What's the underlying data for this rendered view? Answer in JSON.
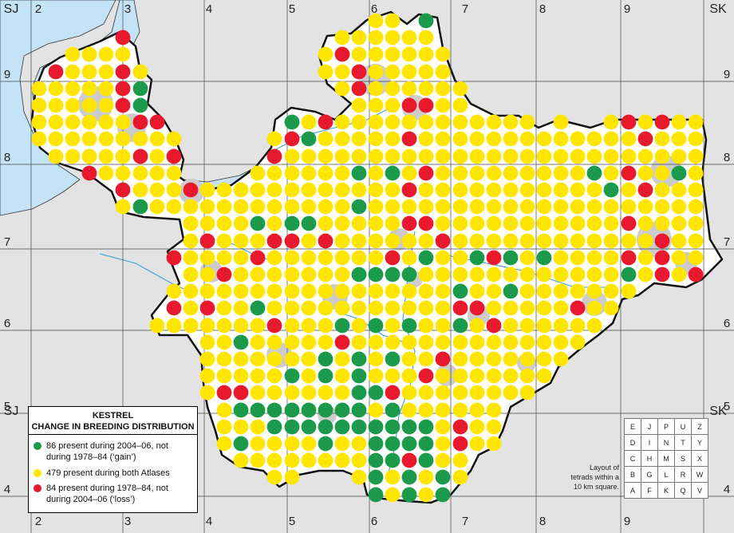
{
  "map": {
    "corner_labels": {
      "top_left": "SJ",
      "top_right": "SK",
      "bottom_left": "SJ",
      "bottom_right": "SK"
    },
    "easting_labels": [
      "2",
      "3",
      "4",
      "5",
      "6",
      "7",
      "8",
      "9"
    ],
    "northing_labels": [
      "9",
      "8",
      "7",
      "6",
      "5",
      "4"
    ],
    "colors": {
      "background_land": "#e3e3e3",
      "county_land": "#ffffff",
      "sea": "#c5e3f7",
      "urban": "#cccccc",
      "river": "#3aa0d6",
      "boundary": "#111111",
      "grid": "#444444",
      "gain": "#1a9a4a",
      "both": "#ffe600",
      "loss": "#e8192c"
    }
  },
  "legend": {
    "title_line1": "KESTREL",
    "title_line2": "CHANGE IN BREEDING DISTRIBUTION",
    "items": [
      {
        "key": "gain",
        "color": "#1a9a4a",
        "line1": "86 present during 2004–06, not",
        "line2": "during 1978–84 (‘gain’)"
      },
      {
        "key": "both",
        "color": "#ffe600",
        "line1": "479 present during both Atlases",
        "line2": ""
      },
      {
        "key": "loss",
        "color": "#e8192c",
        "line1": "84 present during 1978–84, not",
        "line2": "during 2004–06 (‘loss’)"
      }
    ]
  },
  "tetrad_key": {
    "rows": [
      [
        "E",
        "J",
        "P",
        "U",
        "Z"
      ],
      [
        "D",
        "I",
        "N",
        "T",
        "Y"
      ],
      [
        "C",
        "H",
        "M",
        "S",
        "X"
      ],
      [
        "B",
        "G",
        "L",
        "R",
        "W"
      ],
      [
        "A",
        "F",
        "K",
        "Q",
        "V"
      ]
    ],
    "caption_line1": "Layout of",
    "caption_line2": "tetrads within a",
    "caption_line3": "10 km square."
  }
}
